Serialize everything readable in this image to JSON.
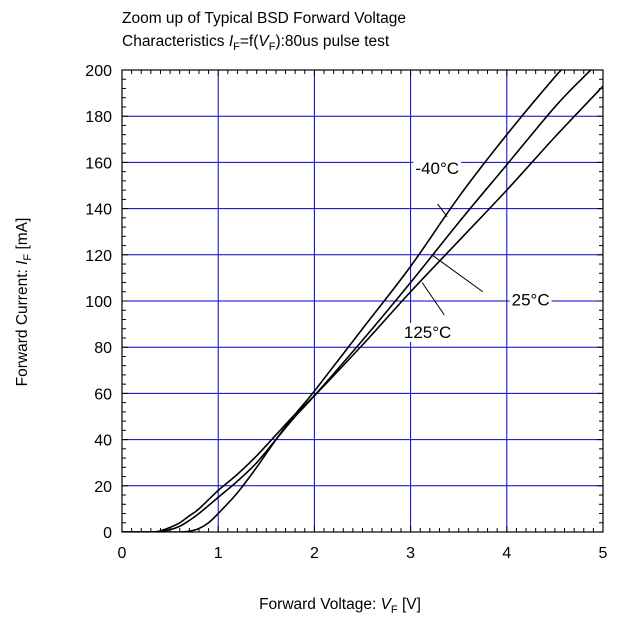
{
  "chart_data": {
    "type": "line",
    "title_line1": "Zoom up of Typical BSD Forward Voltage",
    "title_line2_prefix": "Characteristics ",
    "title_line2_I": "I",
    "title_line2_Isub": "F",
    "title_line2_mid": "=f(",
    "title_line2_V": "V",
    "title_line2_Vsub": "F",
    "title_line2_suffix": "):80us pulse test",
    "xlabel_prefix": "Forward Voltage: ",
    "xlabel_var": "V",
    "xlabel_sub": "F",
    "xlabel_unit": " [V]",
    "ylabel_prefix": "Forward Current: ",
    "ylabel_var": "I",
    "ylabel_sub": "F",
    "ylabel_unit": " [mA]",
    "xlim": [
      0,
      5
    ],
    "ylim": [
      0,
      200
    ],
    "x_ticks": [
      "0",
      "1",
      "2",
      "3",
      "4",
      "5"
    ],
    "y_ticks": [
      "0",
      "20",
      "40",
      "60",
      "80",
      "100",
      "120",
      "140",
      "160",
      "180",
      "200"
    ],
    "grid": true,
    "grid_color": "#0000cc",
    "line_color": "#000000",
    "series": [
      {
        "name": "-40°C",
        "x": [
          0.0,
          0.3,
          0.5,
          0.6,
          0.7,
          0.8,
          0.9,
          1.0,
          1.2,
          1.4,
          1.6,
          1.8,
          2.0,
          2.5,
          3.0,
          3.5,
          4.0,
          4.5,
          4.6
        ],
        "y": [
          0,
          0,
          0,
          0,
          0.3,
          1.5,
          4,
          8,
          17,
          28,
          40,
          51,
          61,
          88,
          115,
          145,
          172,
          197,
          201
        ]
      },
      {
        "name": "25°C",
        "x": [
          0.0,
          0.3,
          0.4,
          0.5,
          0.6,
          0.7,
          0.8,
          1.0,
          1.2,
          1.4,
          1.6,
          1.8,
          2.0,
          2.5,
          3.0,
          3.5,
          4.0,
          4.5,
          4.8,
          4.9
        ],
        "y": [
          0,
          0,
          0.3,
          1,
          2.5,
          5,
          8,
          15,
          22,
          30,
          40,
          50,
          59,
          83,
          108,
          134,
          159,
          184,
          197,
          201
        ]
      },
      {
        "name": "125°C",
        "x": [
          0.0,
          0.3,
          0.4,
          0.5,
          0.6,
          0.7,
          0.8,
          1.0,
          1.2,
          1.4,
          1.6,
          1.8,
          2.0,
          2.5,
          3.0,
          3.5,
          4.0,
          4.5,
          5.0
        ],
        "y": [
          0,
          0,
          0.5,
          2,
          4,
          7,
          10,
          18,
          25,
          33,
          42,
          51,
          59,
          81,
          104,
          126,
          148,
          171,
          193
        ]
      }
    ],
    "annotations": [
      {
        "text": "-40°C",
        "x": 3.05,
        "y": 155,
        "ax": 3.38,
        "ay": 136.5,
        "lx": 3.28,
        "ly": 142
      },
      {
        "text": "25°C",
        "x": 4.05,
        "y": 98,
        "ax": 3.22,
        "ay": 120,
        "lx": 3.75,
        "ly": 104
      },
      {
        "text": "125°C",
        "x": 2.93,
        "y": 84,
        "ax": 3.12,
        "ay": 108,
        "lx": 3.35,
        "ly": 94
      }
    ]
  }
}
